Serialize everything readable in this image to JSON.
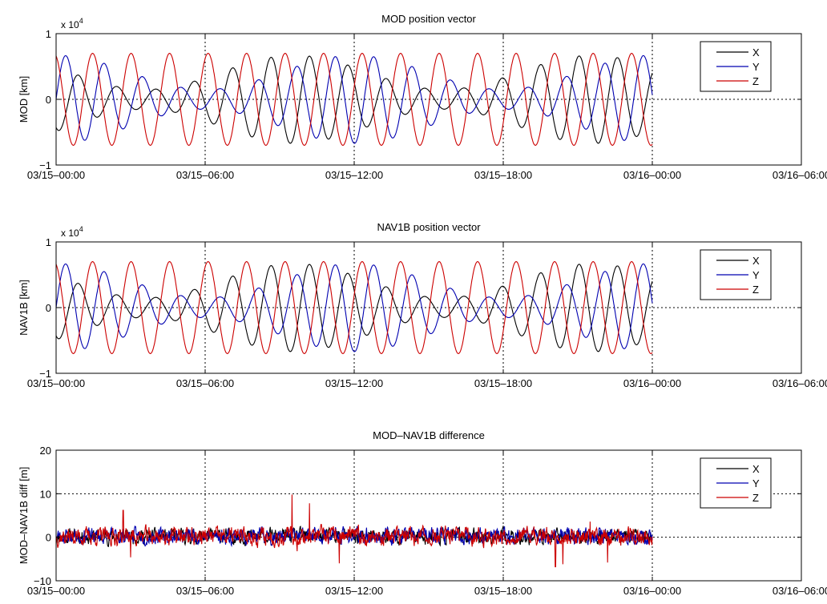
{
  "chart_data": [
    {
      "type": "line",
      "title": "MOD position vector",
      "xlabel": "",
      "ylabel": "MOD [km]",
      "y_exponent_label": "x 10",
      "y_exponent_sup": "4",
      "xticks": [
        "03/15–00:00",
        "03/15–06:00",
        "03/15–12:00",
        "03/15–18:00",
        "03/16–00:00",
        "03/16–06:00"
      ],
      "xlim_hours": [
        0,
        30
      ],
      "data_end_hours": 24,
      "ylim": [
        -10000,
        10000
      ],
      "yticks": [
        -10000,
        0,
        10000
      ],
      "ytick_labels": [
        "−1",
        "0",
        "1"
      ],
      "grid": "dotted",
      "legend_placement": "top-right",
      "legend": [
        "X",
        "Y",
        "Z"
      ],
      "series": [
        {
          "name": "X",
          "color": "#000000",
          "model": "orbit",
          "amp_max": 6700,
          "amp_min": 1500,
          "phase": 4.2
        },
        {
          "name": "Y",
          "color": "#0000b0",
          "model": "orbit",
          "amp_max": 6700,
          "amp_min": 1500,
          "phase": 0.0
        },
        {
          "name": "Z",
          "color": "#cc0000",
          "model": "orbit",
          "amp_max": 7000,
          "amp_min": 7000,
          "phase": 1.9
        }
      ]
    },
    {
      "type": "line",
      "title": "NAV1B position vector",
      "xlabel": "",
      "ylabel": "NAV1B [km]",
      "y_exponent_label": "x 10",
      "y_exponent_sup": "4",
      "xticks": [
        "03/15–00:00",
        "03/15–06:00",
        "03/15–12:00",
        "03/15–18:00",
        "03/16–00:00",
        "03/16–06:00"
      ],
      "xlim_hours": [
        0,
        30
      ],
      "data_end_hours": 24,
      "ylim": [
        -10000,
        10000
      ],
      "yticks": [
        -10000,
        0,
        10000
      ],
      "ytick_labels": [
        "−1",
        "0",
        "1"
      ],
      "grid": "dotted",
      "legend_placement": "top-right",
      "legend": [
        "X",
        "Y",
        "Z"
      ],
      "series": [
        {
          "name": "X",
          "color": "#000000",
          "model": "orbit",
          "amp_max": 6700,
          "amp_min": 1500,
          "phase": 4.2
        },
        {
          "name": "Y",
          "color": "#0000b0",
          "model": "orbit",
          "amp_max": 6700,
          "amp_min": 1500,
          "phase": 0.0
        },
        {
          "name": "Z",
          "color": "#cc0000",
          "model": "orbit",
          "amp_max": 7000,
          "amp_min": 7000,
          "phase": 1.9
        }
      ]
    },
    {
      "type": "line",
      "title": "MOD–NAV1B difference",
      "xlabel": "",
      "ylabel": "MOD–NAV1B diff [m]",
      "xticks": [
        "03/15–00:00",
        "03/15–06:00",
        "03/15–12:00",
        "03/15–18:00",
        "03/16–00:00",
        "03/16–06:00"
      ],
      "xlim_hours": [
        0,
        30
      ],
      "data_end_hours": 24,
      "ylim": [
        -10,
        20
      ],
      "yticks": [
        -10,
        0,
        10,
        20
      ],
      "ytick_labels": [
        "−10",
        "0",
        "10",
        "20"
      ],
      "grid": "dotted",
      "legend_placement": "top-right",
      "legend": [
        "X",
        "Y",
        "Z"
      ],
      "series": [
        {
          "name": "X",
          "color": "#000000",
          "model": "noise",
          "mean": 0.2,
          "spread": 1.3,
          "seed": 11
        },
        {
          "name": "Y",
          "color": "#0000b0",
          "model": "noise",
          "mean": 0.3,
          "spread": 1.4,
          "seed": 23
        },
        {
          "name": "Z",
          "color": "#cc0000",
          "model": "noise",
          "mean": 0.2,
          "spread": 1.6,
          "seed": 37,
          "spikes": [
            [
              2.7,
              6.2
            ],
            [
              3.0,
              -4.6
            ],
            [
              9.5,
              9.8
            ],
            [
              9.7,
              -3.2
            ],
            [
              10.2,
              7.8
            ],
            [
              11.4,
              -6.0
            ],
            [
              20.1,
              -6.8
            ],
            [
              20.4,
              -6.2
            ],
            [
              21.5,
              3.6
            ],
            [
              22.2,
              -5.8
            ]
          ]
        }
      ]
    }
  ]
}
